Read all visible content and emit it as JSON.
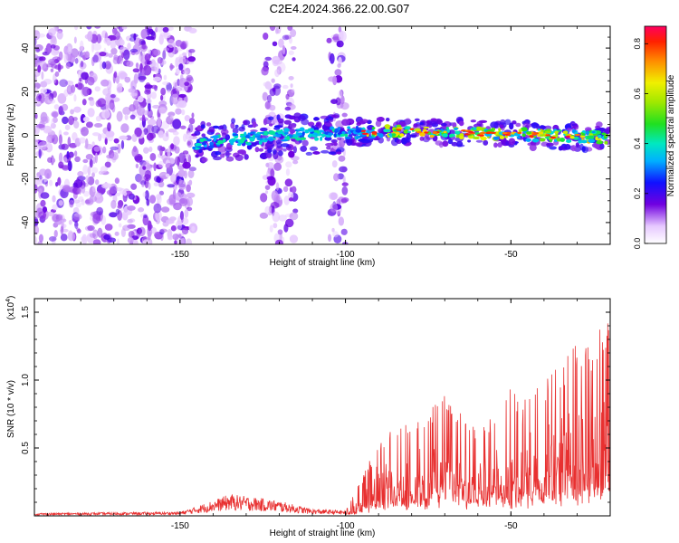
{
  "title": "C2E4.2024.366.22.00.G07",
  "chart_data": [
    {
      "type": "heatmap",
      "title": "C2E4.2024.366.22.00.G07",
      "xlabel": "Height of straight line (km)",
      "ylabel": "Frequency (Hz)",
      "xlim": [
        -194,
        -20
      ],
      "ylim": [
        -50,
        50
      ],
      "x_ticks": [
        -150,
        -100,
        -50
      ],
      "x_tick_labels": [
        "-150",
        "-100",
        "-50"
      ],
      "y_ticks": [
        -40,
        -20,
        0,
        20,
        40
      ],
      "y_tick_labels": [
        "-40",
        "-20",
        "0",
        "20",
        "40"
      ],
      "colorbar": {
        "label": "Normalized spectral amplitude",
        "range": [
          0.0,
          0.87
        ],
        "ticks": [
          0.0,
          0.2,
          0.4,
          0.6,
          0.8
        ],
        "tick_labels": [
          "0.0",
          "0.2",
          "0.4",
          "0.6",
          "0.8"
        ]
      },
      "regions": [
        {
          "name": "scattered noise",
          "x_range": [
            -194,
            -146
          ],
          "freq_range": [
            -50,
            50
          ],
          "amplitude": 0.05
        },
        {
          "name": "noise band",
          "x_range": [
            -125,
            -115
          ],
          "freq_range": [
            -50,
            50
          ],
          "amplitude": 0.04
        },
        {
          "name": "noise band",
          "x_range": [
            -105,
            -100
          ],
          "freq_range": [
            -50,
            50
          ],
          "amplitude": 0.03
        },
        {
          "name": "signal line",
          "x_range": [
            -146,
            -20
          ],
          "center_freq": [
            -4,
            0,
            2,
            1,
            0,
            -1
          ],
          "center_x": [
            -146,
            -120,
            -80,
            -60,
            -40,
            -20
          ],
          "amplitude": 0.45
        }
      ]
    },
    {
      "type": "line",
      "xlabel": "Height of straight line (km)",
      "ylabel": "SNR (10 * v/v)",
      "exponent_label": "(x10",
      "exponent_sup": "4",
      "exponent_close": ")",
      "xlim": [
        -194,
        -20
      ],
      "ylim": [
        0,
        1.6
      ],
      "x_ticks": [
        -150,
        -100,
        -50
      ],
      "x_tick_labels": [
        "-150",
        "-100",
        "-50"
      ],
      "y_ticks": [
        0.5,
        1.0,
        1.5
      ],
      "y_tick_labels": [
        "0.5",
        "1.0",
        "1.5"
      ],
      "color": "#e83030",
      "envelope": {
        "x": [
          -194,
          -150,
          -145,
          -135,
          -128,
          -120,
          -110,
          -100,
          -95,
          -90,
          -85,
          -75,
          -70,
          -60,
          -50,
          -40,
          -30,
          -25,
          -20
        ],
        "max": [
          0.02,
          0.03,
          0.07,
          0.16,
          0.14,
          0.11,
          0.05,
          0.04,
          0.28,
          0.55,
          0.65,
          0.8,
          0.98,
          0.62,
          0.95,
          1.0,
          1.3,
          1.25,
          1.58
        ]
      }
    }
  ]
}
